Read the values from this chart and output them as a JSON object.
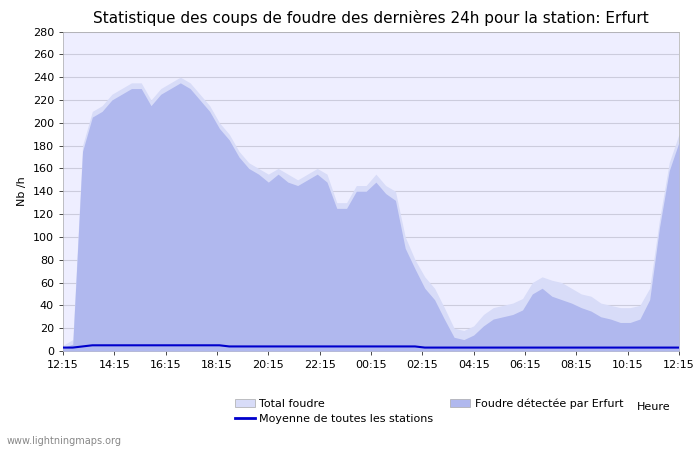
{
  "title": "Statistique des coups de foudre des dernières 24h pour la station: Erfurt",
  "xlabel": "Heure",
  "ylabel": "Nb /h",
  "background_color": "#ffffff",
  "plot_bg_color": "#eeeeff",
  "grid_color": "#ccccdd",
  "ylim": [
    0,
    280
  ],
  "yticks": [
    0,
    20,
    40,
    60,
    80,
    100,
    120,
    140,
    160,
    180,
    200,
    220,
    240,
    260,
    280
  ],
  "xtick_labels": [
    "12:15",
    "14:15",
    "16:15",
    "18:15",
    "20:15",
    "22:15",
    "00:15",
    "02:15",
    "04:15",
    "06:15",
    "08:15",
    "10:15",
    "12:15"
  ],
  "watermark": "www.lightningmaps.org",
  "total_color": "#d8dcf8",
  "detected_color": "#b0b8ee",
  "mean_color": "#0000cc",
  "legend_total": "Total foudre",
  "legend_detected": "Foudre détectée par Erfurt",
  "legend_mean": "Moyenne de toutes les stations",
  "title_fontsize": 11,
  "axis_fontsize": 8,
  "total_values": [
    5,
    10,
    180,
    210,
    215,
    225,
    230,
    235,
    235,
    220,
    230,
    235,
    240,
    235,
    225,
    215,
    200,
    190,
    175,
    165,
    160,
    155,
    160,
    155,
    150,
    155,
    160,
    155,
    130,
    130,
    145,
    145,
    155,
    145,
    140,
    100,
    80,
    65,
    55,
    38,
    20,
    18,
    22,
    32,
    38,
    40,
    42,
    46,
    60,
    65,
    62,
    60,
    55,
    50,
    48,
    42,
    40,
    38,
    38,
    40,
    55,
    115,
    165,
    190
  ],
  "detected_values": [
    3,
    6,
    175,
    205,
    210,
    220,
    225,
    230,
    230,
    215,
    225,
    230,
    235,
    230,
    220,
    210,
    195,
    185,
    170,
    160,
    155,
    148,
    155,
    148,
    145,
    150,
    155,
    148,
    125,
    125,
    140,
    140,
    148,
    138,
    132,
    90,
    72,
    55,
    45,
    28,
    12,
    10,
    14,
    22,
    28,
    30,
    32,
    36,
    50,
    55,
    48,
    45,
    42,
    38,
    35,
    30,
    28,
    25,
    25,
    28,
    45,
    108,
    158,
    183
  ],
  "mean_values": [
    3,
    3,
    4,
    5,
    5,
    5,
    5,
    5,
    5,
    5,
    5,
    5,
    5,
    5,
    5,
    5,
    5,
    4,
    4,
    4,
    4,
    4,
    4,
    4,
    4,
    4,
    4,
    4,
    4,
    4,
    4,
    4,
    4,
    4,
    4,
    4,
    4,
    3,
    3,
    3,
    3,
    3,
    3,
    3,
    3,
    3,
    3,
    3,
    3,
    3,
    3,
    3,
    3,
    3,
    3,
    3,
    3,
    3,
    3,
    3,
    3,
    3,
    3,
    3
  ]
}
